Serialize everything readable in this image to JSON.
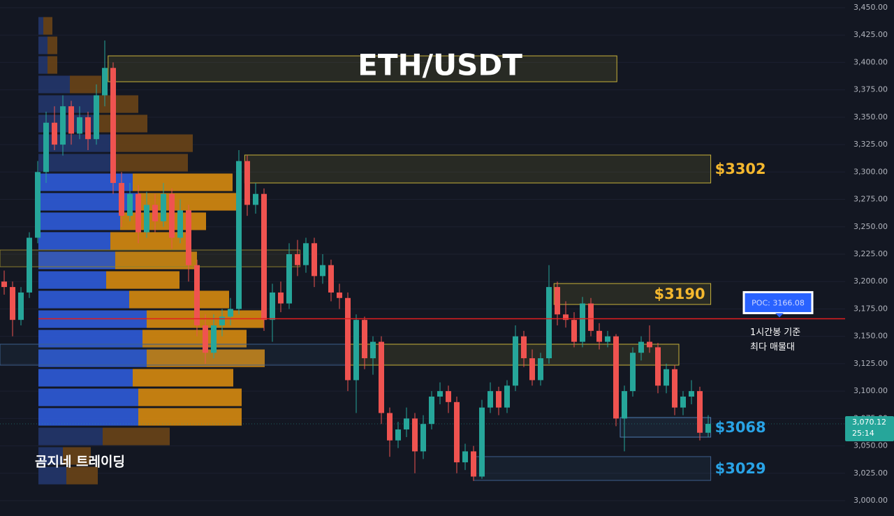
{
  "chart_data": {
    "type": "candlestick",
    "title": "ETH/USDT",
    "ylim": [
      2986,
      3457
    ],
    "yticks": [
      {
        "value": 3450,
        "label": "3,450.00"
      },
      {
        "value": 3425,
        "label": "3,425.00"
      },
      {
        "value": 3400,
        "label": "3,400.00"
      },
      {
        "value": 3375,
        "label": "3,375.00"
      },
      {
        "value": 3350,
        "label": "3,350.00"
      },
      {
        "value": 3325,
        "label": "3,325.00"
      },
      {
        "value": 3300,
        "label": "3,300.00"
      },
      {
        "value": 3275,
        "label": "3,275.00"
      },
      {
        "value": 3250,
        "label": "3,250.00"
      },
      {
        "value": 3225,
        "label": "3,225.00"
      },
      {
        "value": 3200,
        "label": "3,200.00"
      },
      {
        "value": 3175,
        "label": "3,175.00"
      },
      {
        "value": 3150,
        "label": "3,150.00"
      },
      {
        "value": 3125,
        "label": "3,125.00"
      },
      {
        "value": 3100,
        "label": "3,100.00"
      },
      {
        "value": 3075,
        "label": "3,075.00"
      },
      {
        "value": 3050,
        "label": "3,050.00"
      },
      {
        "value": 3025,
        "label": "3,025.00"
      },
      {
        "value": 3000,
        "label": "3,000.00"
      }
    ],
    "grid": true,
    "up_color": "#26a69a",
    "down_color": "#ef5350",
    "candles": [
      [
        3200,
        3210,
        3188,
        3195
      ],
      [
        3195,
        3200,
        3150,
        3165
      ],
      [
        3165,
        3195,
        3160,
        3190
      ],
      [
        3190,
        3245,
        3185,
        3240
      ],
      [
        3240,
        3310,
        3235,
        3300
      ],
      [
        3300,
        3355,
        3290,
        3345
      ],
      [
        3345,
        3360,
        3320,
        3325
      ],
      [
        3325,
        3370,
        3315,
        3360
      ],
      [
        3360,
        3365,
        3325,
        3335
      ],
      [
        3335,
        3360,
        3330,
        3350
      ],
      [
        3350,
        3355,
        3320,
        3330
      ],
      [
        3330,
        3380,
        3325,
        3370
      ],
      [
        3370,
        3420,
        3360,
        3395
      ],
      [
        3395,
        3400,
        3280,
        3290
      ],
      [
        3290,
        3300,
        3250,
        3260
      ],
      [
        3260,
        3290,
        3255,
        3280
      ],
      [
        3280,
        3288,
        3235,
        3245
      ],
      [
        3245,
        3282,
        3240,
        3270
      ],
      [
        3270,
        3280,
        3245,
        3255
      ],
      [
        3255,
        3290,
        3250,
        3280
      ],
      [
        3280,
        3285,
        3230,
        3240
      ],
      [
        3240,
        3275,
        3235,
        3265
      ],
      [
        3265,
        3270,
        3200,
        3215
      ],
      [
        3215,
        3220,
        3150,
        3160
      ],
      [
        3160,
        3170,
        3125,
        3135
      ],
      [
        3135,
        3170,
        3130,
        3160
      ],
      [
        3160,
        3175,
        3150,
        3168
      ],
      [
        3168,
        3185,
        3160,
        3175
      ],
      [
        3175,
        3320,
        3170,
        3310
      ],
      [
        3310,
        3315,
        3260,
        3270
      ],
      [
        3270,
        3290,
        3262,
        3280
      ],
      [
        3280,
        3285,
        3155,
        3165
      ],
      [
        3165,
        3198,
        3145,
        3190
      ],
      [
        3190,
        3200,
        3172,
        3180
      ],
      [
        3180,
        3235,
        3175,
        3225
      ],
      [
        3225,
        3238,
        3205,
        3215
      ],
      [
        3215,
        3240,
        3208,
        3235
      ],
      [
        3235,
        3240,
        3195,
        3205
      ],
      [
        3205,
        3225,
        3198,
        3215
      ],
      [
        3215,
        3220,
        3182,
        3190
      ],
      [
        3190,
        3198,
        3175,
        3185
      ],
      [
        3185,
        3190,
        3100,
        3110
      ],
      [
        3110,
        3170,
        3080,
        3165
      ],
      [
        3165,
        3168,
        3120,
        3130
      ],
      [
        3130,
        3150,
        3115,
        3145
      ],
      [
        3145,
        3150,
        3070,
        3080
      ],
      [
        3080,
        3085,
        3040,
        3055
      ],
      [
        3055,
        3072,
        3048,
        3065
      ],
      [
        3065,
        3085,
        3058,
        3075
      ],
      [
        3075,
        3080,
        3025,
        3045
      ],
      [
        3045,
        3078,
        3038,
        3070
      ],
      [
        3070,
        3100,
        3065,
        3095
      ],
      [
        3095,
        3108,
        3088,
        3100
      ],
      [
        3100,
        3105,
        3080,
        3090
      ],
      [
        3090,
        3095,
        3025,
        3035
      ],
      [
        3035,
        3052,
        3028,
        3045
      ],
      [
        3045,
        3050,
        3018,
        3022
      ],
      [
        3022,
        3092,
        3020,
        3085
      ],
      [
        3085,
        3108,
        3080,
        3100
      ],
      [
        3100,
        3104,
        3078,
        3085
      ],
      [
        3085,
        3110,
        3080,
        3105
      ],
      [
        3105,
        3160,
        3100,
        3150
      ],
      [
        3150,
        3155,
        3122,
        3130
      ],
      [
        3130,
        3138,
        3105,
        3110
      ],
      [
        3110,
        3135,
        3105,
        3130
      ],
      [
        3130,
        3215,
        3125,
        3195
      ],
      [
        3195,
        3200,
        3160,
        3170
      ],
      [
        3170,
        3182,
        3158,
        3165
      ],
      [
        3165,
        3172,
        3140,
        3145
      ],
      [
        3145,
        3186,
        3140,
        3180
      ],
      [
        3180,
        3185,
        3150,
        3155
      ],
      [
        3155,
        3162,
        3138,
        3145
      ],
      [
        3145,
        3155,
        3140,
        3150
      ],
      [
        3150,
        3152,
        3068,
        3075
      ],
      [
        3075,
        3105,
        3045,
        3100
      ],
      [
        3100,
        3140,
        3095,
        3135
      ],
      [
        3135,
        3150,
        3128,
        3145
      ],
      [
        3145,
        3160,
        3135,
        3140
      ],
      [
        3140,
        3144,
        3098,
        3105
      ],
      [
        3105,
        3125,
        3098,
        3120
      ],
      [
        3120,
        3124,
        3078,
        3085
      ],
      [
        3085,
        3100,
        3078,
        3095
      ],
      [
        3095,
        3110,
        3088,
        3100
      ],
      [
        3100,
        3104,
        3055,
        3062
      ],
      [
        3062,
        3078,
        3058,
        3070.12
      ]
    ],
    "profile": {
      "levels": [
        3433.4,
        3415.6,
        3397.7,
        3379.9,
        3362.0,
        3344.2,
        3326.3,
        3308.5,
        3290.6,
        3272.8,
        3255.0,
        3237.1,
        3219.3,
        3201.4,
        3183.6,
        3165.7,
        3147.9,
        3130.0,
        3112.2,
        3094.3,
        3076.5,
        3058.6,
        3040.8,
        3022.9
      ],
      "buy": [
        7,
        13,
        13,
        45,
        85,
        80,
        110,
        110,
        135,
        143,
        117,
        103,
        110,
        97,
        130,
        155,
        149,
        155,
        135,
        143,
        143,
        92,
        35,
        40
      ],
      "sell": [
        13,
        14,
        14,
        45,
        58,
        76,
        111,
        104,
        143,
        148,
        123,
        110,
        117,
        105,
        143,
        168,
        149,
        169,
        144,
        148,
        148,
        96,
        40,
        45
      ],
      "value_area": [
        3076.5,
        3290.6
      ],
      "buy_color": "#2f5bd8",
      "sell_color": "#d68a10",
      "buy_dim_color": "#24366b",
      "sell_dim_color": "#6a4417"
    },
    "zones": [
      {
        "top": 3406,
        "bottom": 3382.4,
        "start": 12.4,
        "end": 73.1,
        "color": "#c9b33a"
      },
      {
        "top": 3315.5,
        "bottom": 3290,
        "start": 28.7,
        "end": 84.3,
        "color": "#c9b33a",
        "label": "$3302",
        "label_color": "#f5b82e",
        "label_position": "outside"
      },
      {
        "top": 3228.8,
        "bottom": 3213.5,
        "start": -0.5,
        "end": 35.3,
        "color": "#8c7f2e"
      },
      {
        "top": 3198.2,
        "bottom": 3179.1,
        "start": 65.6,
        "end": 84.3,
        "color": "#c9b33a",
        "label": "$3190",
        "label_color": "#f5b82e",
        "label_position": "inside"
      },
      {
        "top": 3142.8,
        "bottom": 3123.7,
        "start": -0.5,
        "end": 41.2,
        "color": "#3d5f8c"
      },
      {
        "top": 3142.8,
        "bottom": 3123.7,
        "start": 41.2,
        "end": 80.5,
        "color": "#c9b33a"
      },
      {
        "top": 3075.9,
        "bottom": 3058,
        "start": 73.5,
        "end": 84.3,
        "color": "#4d7bb0",
        "label": "$3068",
        "label_color": "#29a3e6",
        "label_position": "outside"
      },
      {
        "top": 3040.2,
        "bottom": 3018.5,
        "start": 56,
        "end": 84.3,
        "color": "#3d5f8c",
        "label": "$3029",
        "label_color": "#29a3e6",
        "label_position": "outside"
      }
    ],
    "poc": {
      "value": 3166.08,
      "label": "POC: 3166.08"
    },
    "poc_note": [
      "1시간봉 기준",
      "최다 매물대"
    ],
    "last_price": {
      "value": 3070.12,
      "label": "3,070.12"
    },
    "countdown": "25:14",
    "watermark": "곰지네 트레이딩"
  }
}
